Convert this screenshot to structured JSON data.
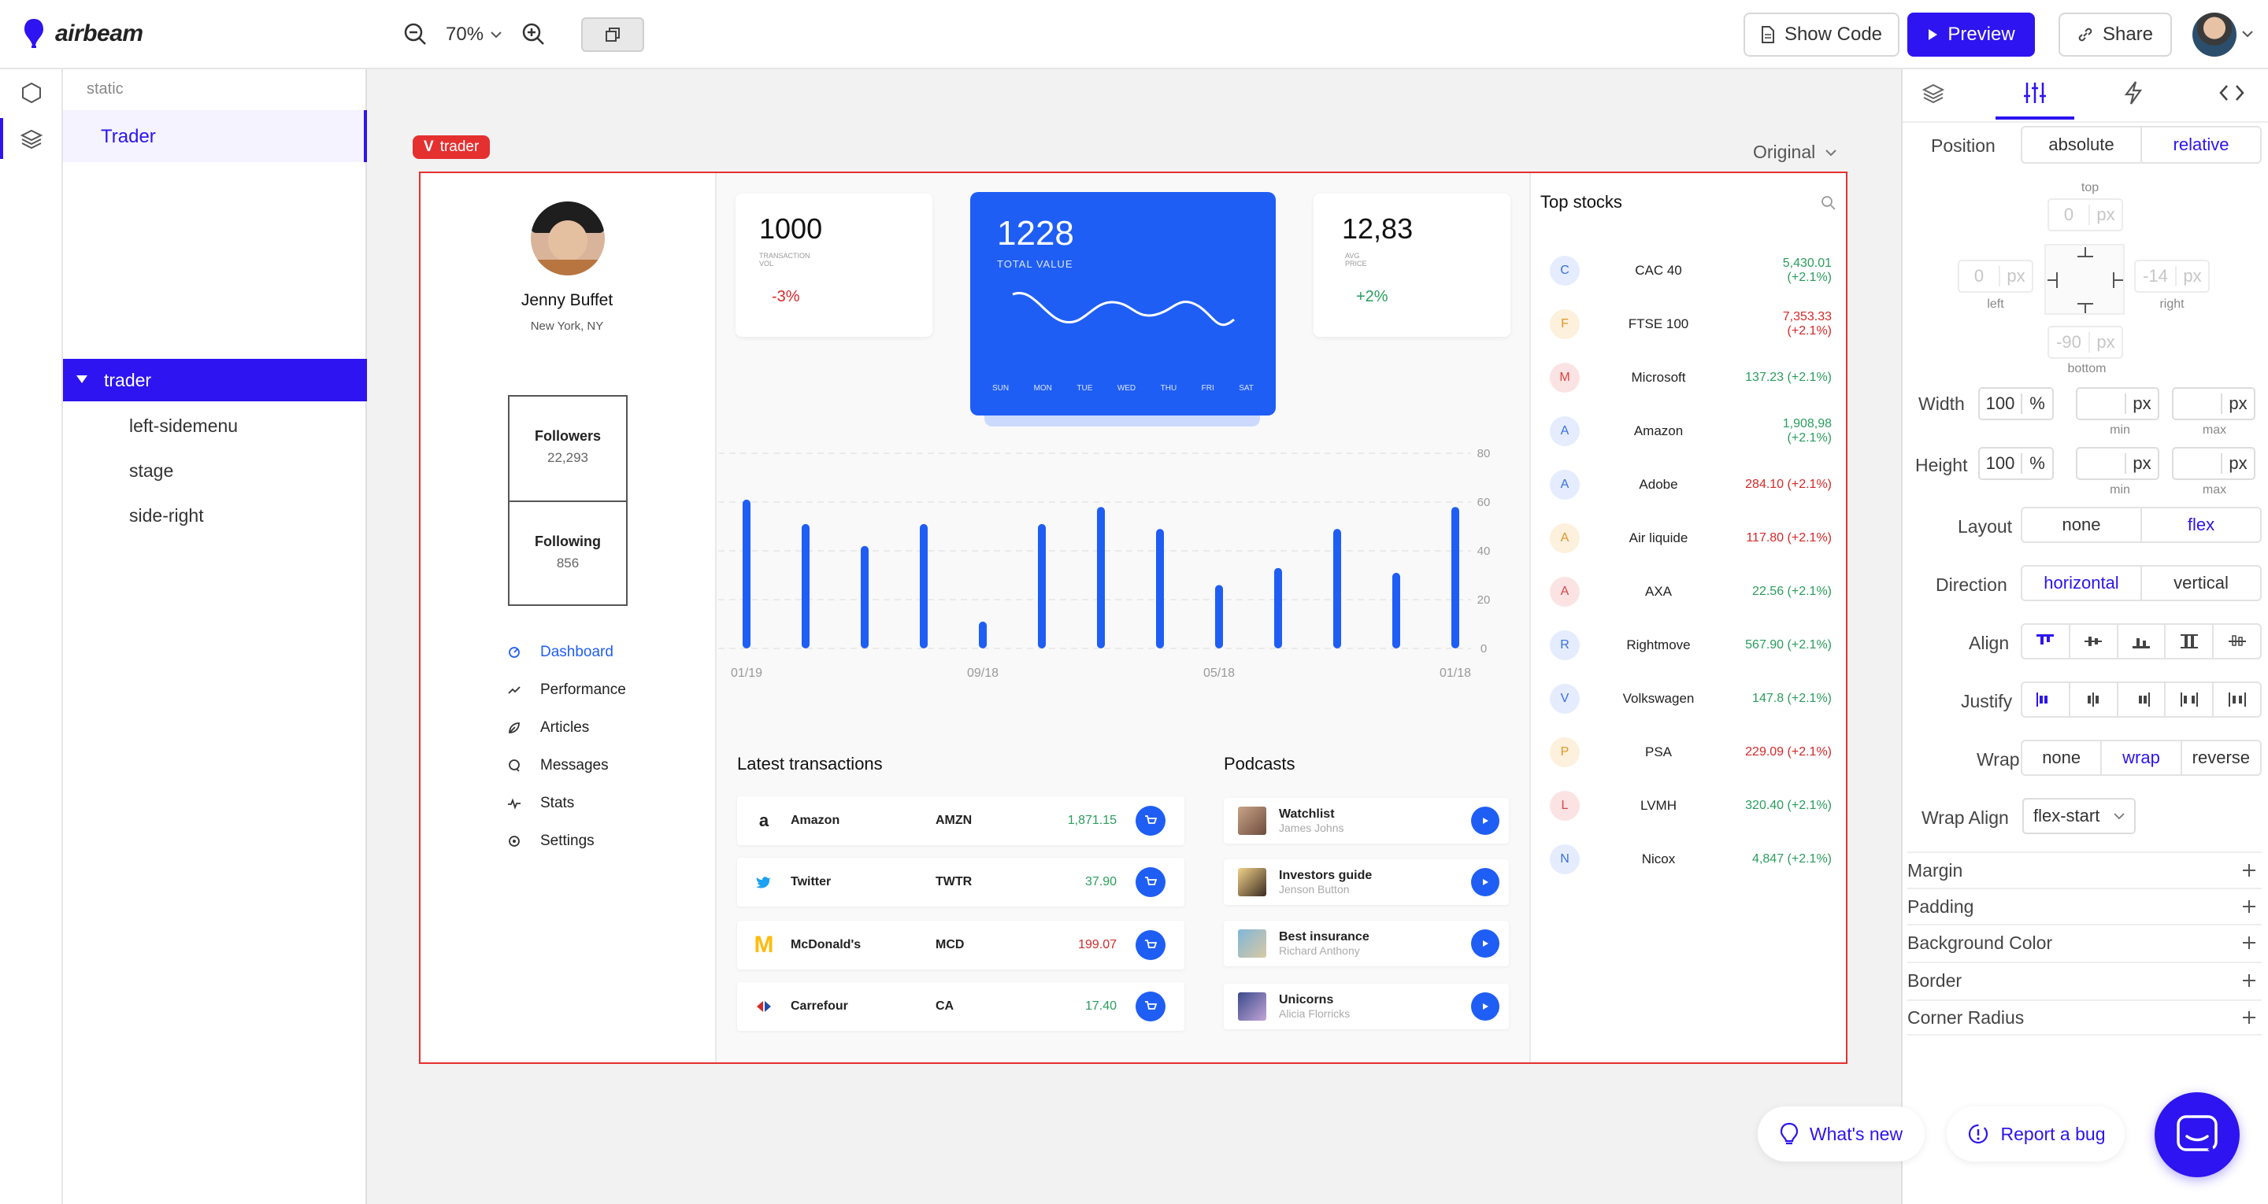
{
  "app": {
    "name": "airbeam"
  },
  "toolbar": {
    "zoom": "70%",
    "show_code": "Show Code",
    "preview": "Preview",
    "share": "Share"
  },
  "layers": {
    "section": "static",
    "page": "Trader",
    "tree_root": "trader",
    "children": [
      "left-sidemenu",
      "stage",
      "side-right"
    ]
  },
  "canvas": {
    "badge": "trader",
    "view_mode": "Original"
  },
  "profile": {
    "name": "Jenny Buffet",
    "location": "New York, NY",
    "followers_label": "Followers",
    "followers": "22,293",
    "following_label": "Following",
    "following": "856"
  },
  "menu": [
    {
      "label": "Dashboard",
      "icon": "dashboard-icon",
      "active": true
    },
    {
      "label": "Performance",
      "icon": "trend-icon"
    },
    {
      "label": "Articles",
      "icon": "leaf-icon"
    },
    {
      "label": "Messages",
      "icon": "chat-icon"
    },
    {
      "label": "Stats",
      "icon": "pulse-icon"
    },
    {
      "label": "Settings",
      "icon": "gear-icon"
    }
  ],
  "kpis": {
    "left": {
      "value": "1000",
      "label1": "TRANSACTION",
      "label2": "VOL",
      "change": "-3%"
    },
    "center": {
      "value": "1228",
      "label": "TOTAL VALUE",
      "days": [
        "SUN",
        "MON",
        "TUE",
        "WED",
        "THU",
        "FRI",
        "SAT"
      ]
    },
    "right": {
      "value": "12,83",
      "label1": "AVG",
      "label2": "PRICE",
      "change": "+2%"
    }
  },
  "chart_data": {
    "type": "bar",
    "y_ticks": [
      "80",
      "60",
      "40",
      "20",
      "0"
    ],
    "ylim": [
      0,
      80
    ],
    "x_ticks": [
      "01/19",
      "09/18",
      "05/18",
      "01/18"
    ],
    "values": [
      61,
      51,
      42,
      51,
      11,
      51,
      58,
      49,
      26,
      33,
      49,
      31,
      58
    ],
    "grid": true
  },
  "transactions": {
    "title": "Latest transactions",
    "rows": [
      {
        "name": "Amazon",
        "ticker": "AMZN",
        "value": "1,871.15",
        "color": "#2a9d5c"
      },
      {
        "name": "Twitter",
        "ticker": "TWTR",
        "value": "37.90",
        "color": "#2a9d5c"
      },
      {
        "name": "McDonald's",
        "ticker": "MCD",
        "value": "199.07",
        "color": "#d62828"
      },
      {
        "name": "Carrefour",
        "ticker": "CA",
        "value": "17.40",
        "color": "#2a9d5c"
      }
    ]
  },
  "podcasts": {
    "title": "Podcasts",
    "rows": [
      {
        "title": "Watchlist",
        "author": "James Johns"
      },
      {
        "title": "Investors guide",
        "author": "Jenson Button"
      },
      {
        "title": "Best insurance",
        "author": "Richard Anthony"
      },
      {
        "title": "Unicorns",
        "author": "Alicia Florricks"
      }
    ]
  },
  "stocks": {
    "title": "Top stocks",
    "rows": [
      {
        "letter": "C",
        "name": "CAC 40",
        "value": "5,430.01 (+2.1%)",
        "color": "#2a9d5c",
        "av_bg": "#e4ecfd",
        "av_fg": "#3b6fe0"
      },
      {
        "letter": "F",
        "name": "FTSE 100",
        "value": "7,353.33 (+2.1%)",
        "color": "#d62828",
        "av_bg": "#fdf0dc",
        "av_fg": "#e0962b"
      },
      {
        "letter": "M",
        "name": "Microsoft",
        "value": "137.23 (+2.1%)",
        "color": "#2a9d5c",
        "av_bg": "#fce3e3",
        "av_fg": "#d84545"
      },
      {
        "letter": "A",
        "name": "Amazon",
        "value": "1,908,98 (+2.1%)",
        "color": "#2a9d5c",
        "av_bg": "#e4ecfd",
        "av_fg": "#3b6fe0"
      },
      {
        "letter": "A",
        "name": "Adobe",
        "value": "284.10 (+2.1%)",
        "color": "#d62828",
        "av_bg": "#e4ecfd",
        "av_fg": "#3b6fe0"
      },
      {
        "letter": "A",
        "name": "Air liquide",
        "value": "117.80 (+2.1%)",
        "color": "#d62828",
        "av_bg": "#fdf0dc",
        "av_fg": "#e0962b"
      },
      {
        "letter": "A",
        "name": "AXA",
        "value": "22.56 (+2.1%)",
        "color": "#2a9d5c",
        "av_bg": "#fce3e3",
        "av_fg": "#d84545"
      },
      {
        "letter": "R",
        "name": "Rightmove",
        "value": "567.90 (+2.1%)",
        "color": "#2a9d5c",
        "av_bg": "#e4ecfd",
        "av_fg": "#3b6fe0"
      },
      {
        "letter": "V",
        "name": "Volkswagen",
        "value": "147.8 (+2.1%)",
        "color": "#2a9d5c",
        "av_bg": "#e4ecfd",
        "av_fg": "#3b6fe0"
      },
      {
        "letter": "P",
        "name": "PSA",
        "value": "229.09 (+2.1%)",
        "color": "#d62828",
        "av_bg": "#fdf0dc",
        "av_fg": "#e0962b"
      },
      {
        "letter": "L",
        "name": "LVMH",
        "value": "320.40 (+2.1%)",
        "color": "#2a9d5c",
        "av_bg": "#fce3e3",
        "av_fg": "#d84545"
      },
      {
        "letter": "N",
        "name": "Nicox",
        "value": "4,847 (+2.1%)",
        "color": "#2a9d5c",
        "av_bg": "#e4ecfd",
        "av_fg": "#3b6fe0"
      }
    ]
  },
  "props": {
    "position_label": "Position",
    "position_options": [
      "absolute",
      "relative"
    ],
    "top": "top",
    "left": "left",
    "right": "right",
    "bottom": "bottom",
    "top_val": "0",
    "left_val": "0",
    "right_val": "-14",
    "bottom_val": "-90",
    "px": "px",
    "width_label": "Width",
    "width_val": "100",
    "height_label": "Height",
    "height_val": "100",
    "pct": "%",
    "min": "min",
    "max": "max",
    "layout_label": "Layout",
    "layout_options": [
      "none",
      "flex"
    ],
    "direction_label": "Direction",
    "direction_options": [
      "horizontal",
      "vertical"
    ],
    "align_label": "Align",
    "justify_label": "Justify",
    "wrap_label": "Wrap",
    "wrap_options": [
      "none",
      "wrap",
      "reverse"
    ],
    "wrap_align_label": "Wrap Align",
    "wrap_align_value": "flex-start",
    "sections": [
      "Margin",
      "Padding",
      "Background Color",
      "Border",
      "Corner Radius"
    ]
  },
  "footer": {
    "whats_new": "What's new",
    "report_bug": "Report a bug"
  },
  "colors": {
    "accent": "#2d14f0",
    "chart_blue": "#1f5ef5",
    "frame_red": "#e53030",
    "up": "#2a9d5c",
    "down": "#d62828"
  }
}
